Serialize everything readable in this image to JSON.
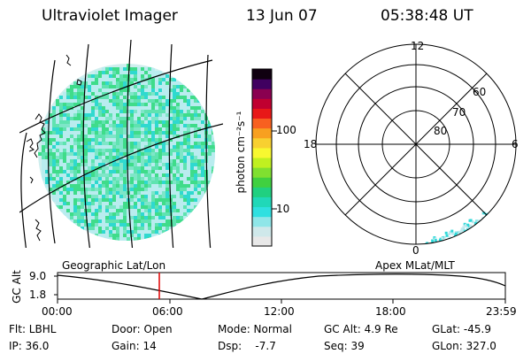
{
  "header": {
    "instrument": "Ultraviolet Imager",
    "date": "13 Jun 07",
    "time": "05:38:48 UT"
  },
  "colorbar": {
    "unit_label": "photon cm⁻²s⁻¹",
    "tick_100": "100",
    "tick_10": "10",
    "colors": [
      "#e8e8e8",
      "#cfe8ea",
      "#8fe6e8",
      "#2fe0e0",
      "#20d8b8",
      "#20d080",
      "#40d040",
      "#80e030",
      "#c0f020",
      "#f8f830",
      "#f8d030",
      "#f8a020",
      "#f86020",
      "#e81818",
      "#c00030",
      "#8a0050",
      "#400060",
      "#100010"
    ]
  },
  "globe_map": {
    "footer_label": "Geographic Lat/Lon",
    "emission_colors": [
      "#7ee6c8",
      "#5fe3b0",
      "#3fdc8a",
      "#b9ecef",
      "#2fd9cf"
    ]
  },
  "polar_map": {
    "footer_label": "Apex MLat/MLT",
    "mlt_labels": {
      "top": "12",
      "left": "18",
      "right": "6",
      "bottom": "0"
    },
    "mlat_labels": [
      "60",
      "70",
      "80"
    ]
  },
  "altitude_plot": {
    "y_title": "GC Alt",
    "y_ticks": [
      "9.0",
      "1.8"
    ],
    "x_ticks": [
      "00:00",
      "06:00",
      "12:00",
      "18:00",
      "23:59"
    ],
    "current_time_color": "#e00000"
  },
  "status": {
    "row1": {
      "flt": "Flt: LBHL",
      "door": "Door: Open",
      "mode": "Mode: Normal",
      "gc_alt": "GC Alt: 4.9 Re",
      "glat": "GLat: -45.9"
    },
    "row2": {
      "ip": "IP: 36.0",
      "gain": "Gain: 14",
      "dsp": "Dsp:    -7.7",
      "seq": "Seq: 39",
      "glon": "GLon: 327.0"
    }
  }
}
